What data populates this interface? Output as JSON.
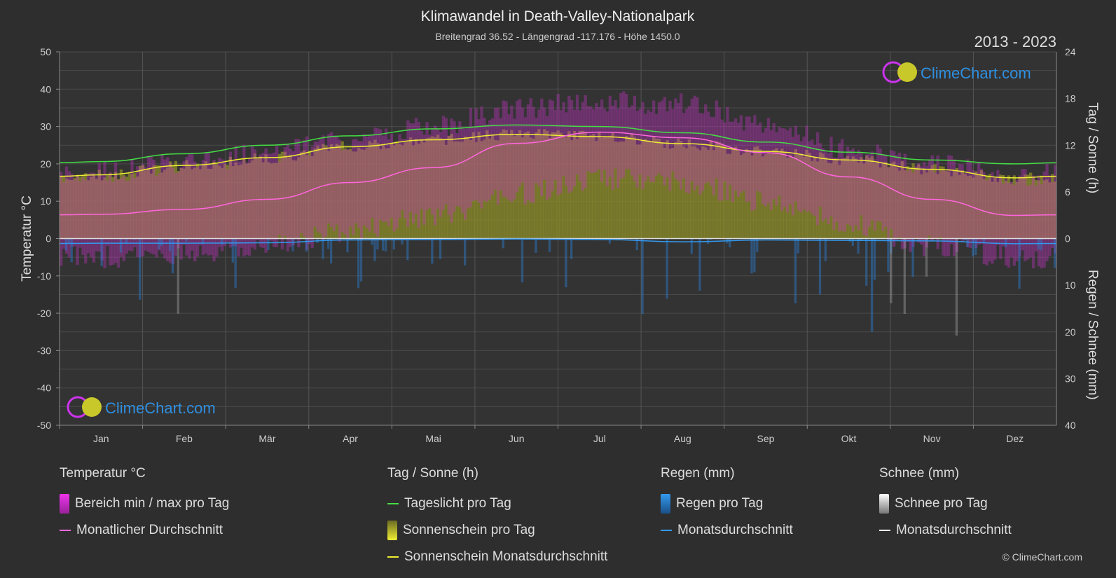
{
  "title": "Klimawandel in Death-Valley-Nationalpark",
  "subtitle": "Breitengrad 36.52 - Längengrad -117.176 - Höhe 1450.0",
  "year_range": "2013 - 2023",
  "logo_text": "ClimeChart.com",
  "copyright": "© ClimeChart.com",
  "colors": {
    "background": "#2e2e2e",
    "daylight": "#44dd44",
    "sunshine_avg": "#eeee33",
    "sunshine_band": "#8c8c2a",
    "temp_range": "#cc33cc",
    "temp_avg": "#ff66dd",
    "rain": "#2a7fd4",
    "rain_avg": "#3399ee",
    "snow": "#bbbbbb",
    "snow_avg": "#ffffff",
    "logo_text": "#2f8fe0"
  },
  "chart_data": {
    "type": "line",
    "title": "Klimawandel in Death-Valley-Nationalpark",
    "xlabel": "",
    "categories": [
      "Jan",
      "Feb",
      "Mär",
      "Apr",
      "Mai",
      "Jun",
      "Jul",
      "Aug",
      "Sep",
      "Okt",
      "Nov",
      "Dez"
    ],
    "axes": {
      "left": {
        "label": "Temperatur °C",
        "range": [
          -50,
          50
        ],
        "ticks": [
          50,
          40,
          30,
          20,
          10,
          0,
          -10,
          -20,
          -30,
          -40,
          -50
        ]
      },
      "right_top": {
        "label": "Tag / Sonne (h)",
        "range": [
          0,
          24
        ],
        "ticks": [
          24,
          18,
          12,
          6,
          0
        ]
      },
      "right_bottom": {
        "label": "Regen / Schnee (mm)",
        "range": [
          0,
          40
        ],
        "ticks": [
          10,
          20,
          30,
          40
        ]
      }
    },
    "grid": true,
    "series": [
      {
        "name": "Tageslicht pro Tag",
        "axis": "hours",
        "values": [
          9.9,
          10.9,
          12.0,
          13.2,
          14.1,
          14.6,
          14.4,
          13.6,
          12.4,
          11.1,
          10.1,
          9.6
        ]
      },
      {
        "name": "Sonnenschein Monatsdurchschnitt",
        "axis": "hours",
        "values": [
          8.2,
          9.4,
          10.4,
          11.8,
          12.7,
          13.4,
          13.1,
          12.2,
          11.2,
          10.1,
          8.9,
          7.8
        ]
      },
      {
        "name": "Monatlicher Durchschnitt",
        "axis": "temperature",
        "values": [
          6.5,
          7.8,
          10.5,
          15.0,
          19.0,
          25.5,
          28.5,
          27.0,
          23.0,
          16.5,
          10.5,
          6.2
        ]
      },
      {
        "name": "Bereich min / max pro Tag (max)",
        "axis": "temperature",
        "values": [
          18,
          20,
          23,
          26,
          30,
          35,
          37,
          36,
          31,
          24,
          20,
          17
        ]
      },
      {
        "name": "Bereich min / max pro Tag (min)",
        "axis": "temperature",
        "values": [
          -5,
          -4,
          -2,
          2,
          6,
          12,
          16,
          15,
          10,
          4,
          -2,
          -5
        ]
      },
      {
        "name": "Regen Monatsdurchschnitt",
        "axis": "precipitation",
        "values": [
          1.0,
          1.0,
          0.9,
          0.3,
          0.2,
          0.1,
          0.2,
          0.7,
          0.3,
          0.4,
          0.5,
          1.1
        ]
      },
      {
        "name": "Schnee Monatsdurchschnitt",
        "axis": "precipitation",
        "values": [
          0,
          0,
          0,
          0,
          0,
          0,
          0,
          0,
          0,
          0,
          0,
          0
        ]
      }
    ]
  },
  "legend": {
    "groups": [
      {
        "title": "Temperatur °C",
        "items": [
          {
            "label": "Bereich min / max pro Tag",
            "kind": "box",
            "color": "#cc33cc"
          },
          {
            "label": "Monatlicher Durchschnitt",
            "kind": "line",
            "color": "#ff66dd"
          }
        ]
      },
      {
        "title": "Tag / Sonne (h)",
        "items": [
          {
            "label": "Tageslicht pro Tag",
            "kind": "line",
            "color": "#44dd44"
          },
          {
            "label": "Sonnenschein pro Tag",
            "kind": "box",
            "color": "#d4d434"
          },
          {
            "label": "Sonnenschein Monatsdurchschnitt",
            "kind": "line",
            "color": "#eeee33"
          }
        ]
      },
      {
        "title": "Regen (mm)",
        "items": [
          {
            "label": "Regen pro Tag",
            "kind": "box",
            "color": "#2a7fd4"
          },
          {
            "label": "Monatsdurchschnitt",
            "kind": "line",
            "color": "#3399ee"
          }
        ]
      },
      {
        "title": "Schnee (mm)",
        "items": [
          {
            "label": "Schnee pro Tag",
            "kind": "box",
            "color": "#bbbbbb"
          },
          {
            "label": "Monatsdurchschnitt",
            "kind": "line",
            "color": "#ffffff"
          }
        ]
      }
    ]
  }
}
